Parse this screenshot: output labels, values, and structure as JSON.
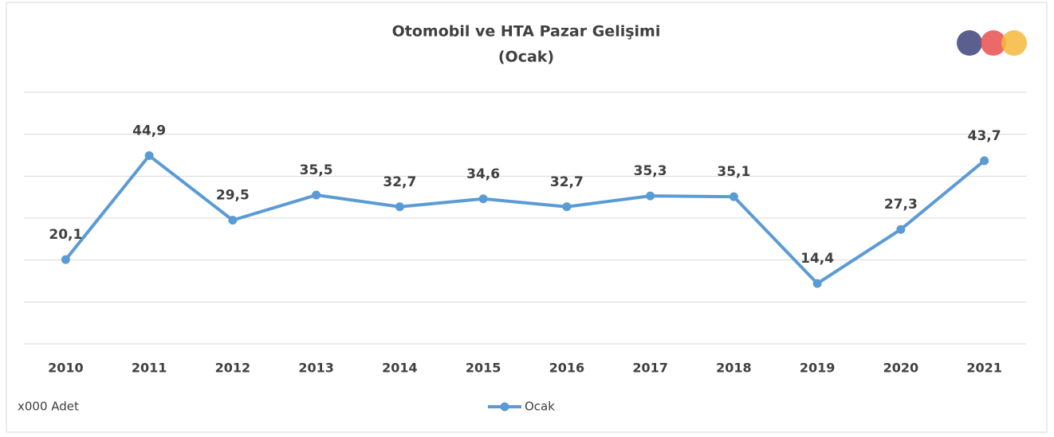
{
  "chart_data": {
    "type": "line",
    "title": "Otomobil ve HTA Pazar Gelişimi",
    "subtitle": "(Ocak)",
    "ylabel": "x000 Adet",
    "categories": [
      "2010",
      "2011",
      "2012",
      "2013",
      "2014",
      "2015",
      "2016",
      "2017",
      "2018",
      "2019",
      "2020",
      "2021"
    ],
    "series": [
      {
        "name": "Ocak",
        "color": "#5b9bd5",
        "values": [
          20.1,
          44.9,
          29.5,
          35.5,
          32.7,
          34.6,
          32.7,
          35.3,
          35.1,
          14.4,
          27.3,
          43.7
        ],
        "value_labels": [
          "20,1",
          "44,9",
          "29,5",
          "35,5",
          "32,7",
          "34,6",
          "32,7",
          "35,3",
          "35,1",
          "14,4",
          "27,3",
          "43,7"
        ]
      }
    ],
    "ylim": [
      0,
      60
    ],
    "yticks": [
      0,
      10,
      20,
      30,
      40,
      50,
      60
    ],
    "grid": true,
    "legend": "bottom"
  }
}
